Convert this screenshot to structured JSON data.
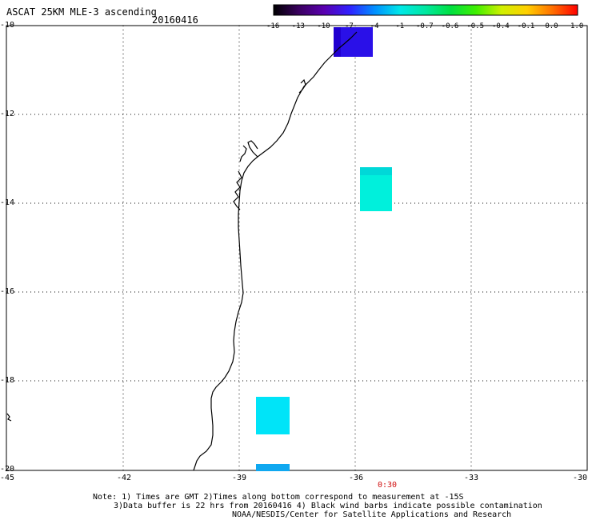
{
  "header": {
    "title": "ASCAT 25KM MLE-3 ascending",
    "date": "20160416"
  },
  "colorbar": {
    "labels": [
      "-16",
      "-13",
      "-10",
      "-7",
      "-4",
      "-1",
      "-0.7",
      "-0.6",
      "-0.5",
      "-0.4",
      "-0.1",
      "0.0",
      "1.0"
    ],
    "colors": [
      "#000000",
      "#3a0060",
      "#5a00b0",
      "#3020ff",
      "#0090ff",
      "#00e8e8",
      "#00e8a0",
      "#00e040",
      "#40f000",
      "#d0f000",
      "#ffd000",
      "#ff7000",
      "#ff0000"
    ]
  },
  "axes": {
    "y_labels": [
      "-10",
      "-12",
      "-14",
      "-16",
      "-18",
      "-20"
    ],
    "x_labels": [
      "-45",
      "-42",
      "-39",
      "-36",
      "-33",
      "-30"
    ]
  },
  "time_markers": [
    "0:30"
  ],
  "notes": [
    "Note: 1) Times are GMT 2)Times along bottom correspond to measurement at -15S",
    "3)Data buffer is 22 hrs from 20160416 4) Black wind barbs indicate possible contamination",
    "NOAA/NESDIS/Center for Satellite Applications and Research"
  ],
  "swath_cells": [
    {
      "name": "cell-blue-top",
      "color": "#2a10e8"
    },
    {
      "name": "cell-aqua-mid",
      "color": "#00f0dc"
    },
    {
      "name": "cell-cyan-south",
      "color": "#00e4f8"
    },
    {
      "name": "cell-sky-bottom",
      "color": "#10a8f0"
    }
  ]
}
